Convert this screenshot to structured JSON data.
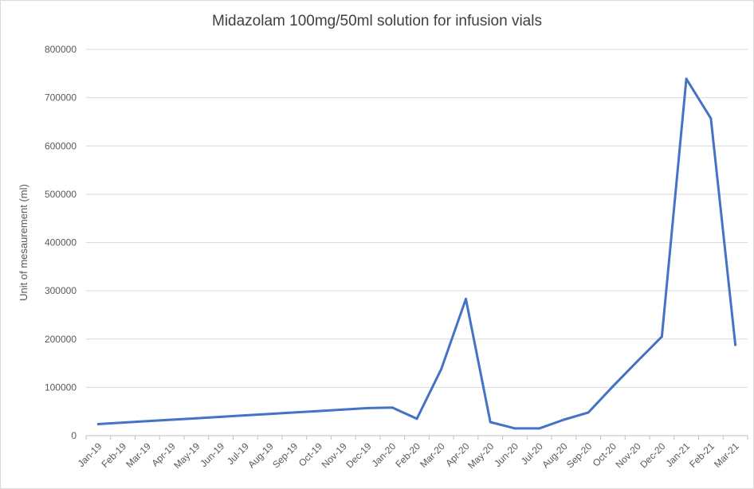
{
  "chart_data": {
    "type": "line",
    "title": "Midazolam 100mg/50ml solution for infusion vials",
    "xlabel": "",
    "ylabel": "Unit of mesaurement (ml)",
    "ylim": [
      0,
      800000
    ],
    "yticks": [
      0,
      100000,
      200000,
      300000,
      400000,
      500000,
      600000,
      700000,
      800000
    ],
    "grid": true,
    "categories": [
      "Jan-19",
      "Feb-19",
      "Mar-19",
      "Apr-19",
      "May-19",
      "Jun-19",
      "Jul-19",
      "Aug-19",
      "Sep-19",
      "Oct-19",
      "Nov-19",
      "Dec-19",
      "Jan-20",
      "Feb-20",
      "Mar-20",
      "Apr-20",
      "May-20",
      "Jun-20",
      "Jul-20",
      "Aug-20",
      "Sep-20",
      "Oct-20",
      "Nov-20",
      "Dec-20",
      "Jan-21",
      "Feb-21",
      "Mar-21"
    ],
    "series": [
      {
        "name": "Midazolam 100mg/50ml",
        "color": "#4472c4",
        "values": [
          24000,
          27000,
          30000,
          33000,
          36000,
          39000,
          42000,
          45000,
          48000,
          51000,
          54000,
          57000,
          58000,
          35000,
          138000,
          283000,
          28000,
          15000,
          15000,
          33000,
          48000,
          102000,
          154000,
          205000,
          739000,
          657000,
          188000
        ]
      }
    ]
  }
}
